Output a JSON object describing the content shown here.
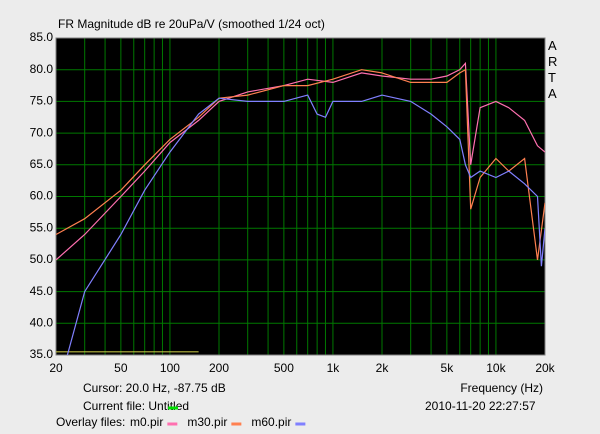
{
  "chart_data": {
    "type": "line",
    "title": "FR Magnitude dB re 20uPa/V (smoothed 1/24 oct)",
    "side_label": "ARTA",
    "x_label": "Frequency (Hz)",
    "cursor_text": "Cursor: 20.0 Hz, -87.75 dB",
    "current_file_text": "Current file: Untitled",
    "current_file_color": "#00e000",
    "timestamp": "2010-11-20  22:27:57",
    "overlay_text": "Overlay files:",
    "xscale": "log",
    "grid": true,
    "grid_color": "#007800",
    "xlim": [
      20,
      20000
    ],
    "ylim": [
      35,
      85
    ],
    "xticks": [
      20,
      50,
      100,
      200,
      500,
      {
        "value": 1000,
        "label": "1k"
      },
      {
        "value": 2000,
        "label": "2k"
      },
      {
        "value": 5000,
        "label": "5k"
      },
      {
        "value": 10000,
        "label": "10k"
      },
      {
        "value": 20000,
        "label": "20k"
      }
    ],
    "x_minor_grid": [
      30,
      40,
      60,
      70,
      80,
      90,
      300,
      400,
      600,
      700,
      800,
      900,
      3000,
      4000,
      6000,
      7000,
      8000,
      9000
    ],
    "yticks": [
      {
        "value": 35,
        "label": "35.0"
      },
      {
        "value": 40,
        "label": "40.0"
      },
      {
        "value": 45,
        "label": "45.0"
      },
      {
        "value": 50,
        "label": "50.0"
      },
      {
        "value": 55,
        "label": "55.0"
      },
      {
        "value": 60,
        "label": "60.0"
      },
      {
        "value": 65,
        "label": "65.0"
      },
      {
        "value": 70,
        "label": "70.0"
      },
      {
        "value": 75,
        "label": "75.0"
      },
      {
        "value": 80,
        "label": "80.0"
      },
      {
        "value": 85,
        "label": "85.0"
      }
    ],
    "series": [
      {
        "name": "m0.pir",
        "color": "#ff70b0",
        "x": [
          20,
          30,
          50,
          70,
          100,
          150,
          200,
          300,
          500,
          700,
          1000,
          1500,
          2000,
          3000,
          4000,
          5000,
          6000,
          6500,
          7000,
          8000,
          10000,
          12000,
          15000,
          18000,
          20000
        ],
        "values": [
          50,
          54,
          60,
          64,
          68.5,
          72,
          75,
          76.5,
          77.5,
          78.5,
          78,
          79.5,
          79,
          78.5,
          78.5,
          79,
          80,
          81,
          65,
          74,
          75,
          74,
          72,
          68,
          67
        ]
      },
      {
        "name": "m30.pir",
        "color": "#ff8050",
        "x": [
          20,
          30,
          50,
          70,
          100,
          150,
          200,
          300,
          500,
          700,
          1000,
          1500,
          2000,
          3000,
          5000,
          6000,
          6500,
          7000,
          8000,
          10000,
          12000,
          15000,
          18000,
          20000
        ],
        "values": [
          54,
          56.5,
          61,
          65,
          69,
          72.5,
          75.5,
          76,
          77.5,
          77.5,
          78.5,
          80,
          79.5,
          78,
          78,
          79.5,
          80,
          58,
          63,
          66,
          64,
          66,
          50,
          59
        ]
      },
      {
        "name": "m60.pir",
        "color": "#8080ff",
        "x": [
          23.5,
          30,
          50,
          70,
          100,
          150,
          200,
          300,
          500,
          700,
          800,
          900,
          1000,
          1500,
          2000,
          3000,
          4000,
          5000,
          6000,
          6500,
          7000,
          8000,
          10000,
          12000,
          15000,
          18000,
          19000,
          20000
        ],
        "values": [
          35,
          45,
          54,
          61,
          67,
          73,
          75.5,
          75,
          75,
          76,
          73,
          72.5,
          75,
          75,
          76,
          75,
          73,
          71,
          69,
          65,
          63,
          64,
          63,
          64,
          62,
          60,
          49,
          55
        ]
      }
    ],
    "marker_line": {
      "color": "#b8b840",
      "x": [
        20,
        150
      ],
      "values": [
        35.5,
        35.5
      ]
    }
  }
}
